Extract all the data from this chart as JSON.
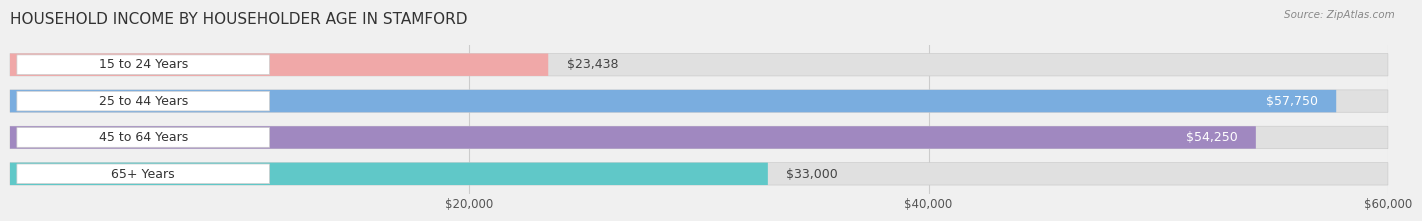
{
  "title": "HOUSEHOLD INCOME BY HOUSEHOLDER AGE IN STAMFORD",
  "source": "Source: ZipAtlas.com",
  "categories": [
    "15 to 24 Years",
    "25 to 44 Years",
    "45 to 64 Years",
    "65+ Years"
  ],
  "values": [
    23438,
    57750,
    54250,
    33000
  ],
  "bar_colors": [
    "#f0a8a8",
    "#7aaddf",
    "#a088c0",
    "#60c8c8"
  ],
  "background_color": "#f0f0f0",
  "bar_bg_color": "#e0e0e0",
  "value_labels": [
    "$23,438",
    "$57,750",
    "$54,250",
    "$33,000"
  ],
  "value_inside": [
    false,
    true,
    true,
    false
  ],
  "xmin": 0,
  "xmax": 60000,
  "xticks": [
    20000,
    40000,
    60000
  ],
  "xtick_labels": [
    "$20,000",
    "$40,000",
    "$60,000"
  ],
  "title_fontsize": 11,
  "label_fontsize": 9,
  "value_fontsize": 9,
  "tick_fontsize": 8.5
}
